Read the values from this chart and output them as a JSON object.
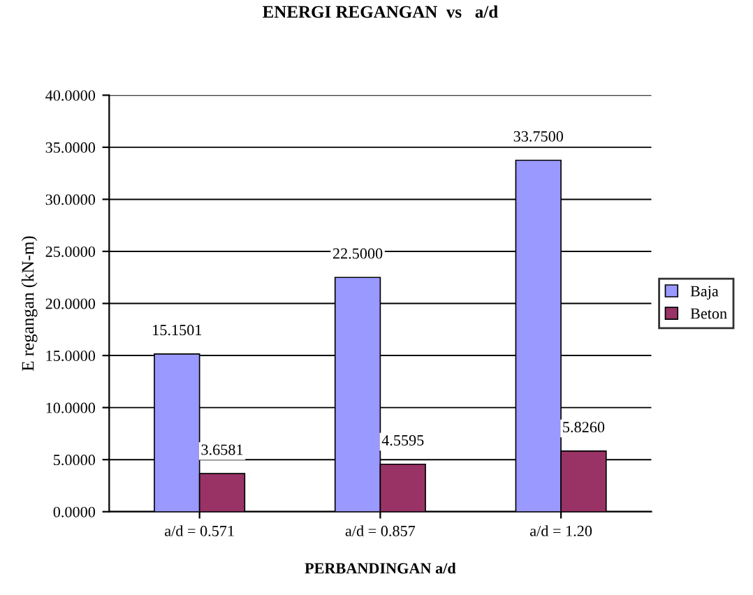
{
  "chart_data": {
    "type": "bar",
    "title": "ENERGI REGANGAN  vs   a/d",
    "xlabel": "PERBANDINGAN a/d",
    "ylabel": "E regangan (kN-m)",
    "categories": [
      "a/d = 0.571",
      "a/d = 0.857",
      "a/d = 1.20"
    ],
    "series": [
      {
        "name": "Baja",
        "color": "#9999ff",
        "values": [
          15.1501,
          22.5,
          33.75
        ],
        "value_labels": [
          "15.1501",
          "22.5000",
          "33.7500"
        ]
      },
      {
        "name": "Beton",
        "color": "#993366",
        "values": [
          3.6581,
          4.5595,
          5.826
        ],
        "value_labels": [
          "3.6581",
          "4.5595",
          "5.8260"
        ]
      }
    ],
    "ylim": [
      0,
      40
    ],
    "yticks": [
      {
        "value": 0,
        "label": "0.0000"
      },
      {
        "value": 5,
        "label": "5.0000"
      },
      {
        "value": 10,
        "label": "10.0000"
      },
      {
        "value": 15,
        "label": "15.0000"
      },
      {
        "value": 20,
        "label": "20.0000"
      },
      {
        "value": 25,
        "label": "25.0000"
      },
      {
        "value": 30,
        "label": "30.0000"
      },
      {
        "value": 35,
        "label": "35.0000"
      },
      {
        "value": 40,
        "label": "40.0000"
      }
    ],
    "grid": "y",
    "legend": "right"
  }
}
